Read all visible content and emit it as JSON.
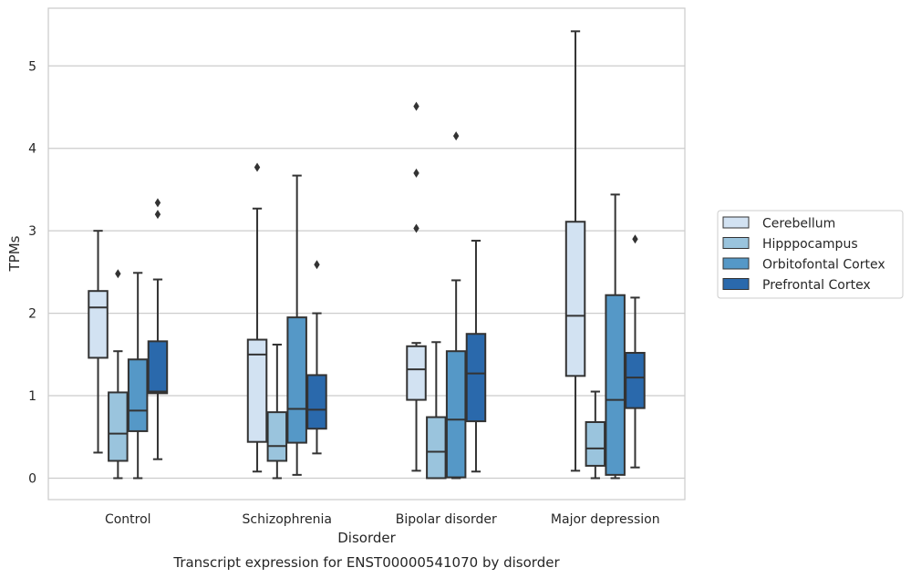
{
  "chart_data": {
    "type": "boxplot",
    "title": "Transcript expression for ENST00000541070 by disorder",
    "xlabel": "Disorder",
    "ylabel": "TPMs",
    "ylim": [
      -0.26,
      5.7
    ],
    "yticks": [
      0,
      1,
      2,
      3,
      4,
      5
    ],
    "grid": true,
    "legend_position": "right",
    "categories": [
      "Control",
      "Schizophrenia",
      "Bipolar disorder",
      "Major depression"
    ],
    "series": [
      {
        "name": "Cerebellum",
        "color": "#d2e2f2",
        "boxes": [
          {
            "whislo": 0.31,
            "q1": 1.46,
            "med": 2.07,
            "q3": 2.27,
            "whishi": 3.0,
            "fliers": []
          },
          {
            "whislo": 0.08,
            "q1": 0.44,
            "med": 1.5,
            "q3": 1.68,
            "whishi": 3.27,
            "fliers": [
              3.77
            ]
          },
          {
            "whislo": 0.09,
            "q1": 0.95,
            "med": 1.32,
            "q3": 1.6,
            "whishi": 1.64,
            "fliers": [
              3.03,
              3.7,
              4.51
            ]
          },
          {
            "whislo": 0.09,
            "q1": 1.24,
            "med": 1.97,
            "q3": 3.11,
            "whishi": 5.42,
            "fliers": []
          }
        ]
      },
      {
        "name": "Hipppocampus",
        "color": "#9ac4dd",
        "boxes": [
          {
            "whislo": 0.0,
            "q1": 0.21,
            "med": 0.54,
            "q3": 1.04,
            "whishi": 1.54,
            "fliers": [
              2.48
            ]
          },
          {
            "whislo": 0.0,
            "q1": 0.21,
            "med": 0.39,
            "q3": 0.8,
            "whishi": 1.62,
            "fliers": []
          },
          {
            "whislo": 0.0,
            "q1": 0.0,
            "med": 0.32,
            "q3": 0.74,
            "whishi": 1.65,
            "fliers": []
          },
          {
            "whislo": 0.0,
            "q1": 0.15,
            "med": 0.36,
            "q3": 0.68,
            "whishi": 1.05,
            "fliers": []
          }
        ]
      },
      {
        "name": "Orbitofontal Cortex",
        "color": "#5598c7",
        "boxes": [
          {
            "whislo": 0.0,
            "q1": 0.57,
            "med": 0.82,
            "q3": 1.44,
            "whishi": 2.49,
            "fliers": []
          },
          {
            "whislo": 0.04,
            "q1": 0.43,
            "med": 0.84,
            "q3": 1.95,
            "whishi": 3.67,
            "fliers": []
          },
          {
            "whislo": 0.0,
            "q1": 0.01,
            "med": 0.71,
            "q3": 1.54,
            "whishi": 2.4,
            "fliers": [
              4.15
            ]
          },
          {
            "whislo": 0.0,
            "q1": 0.04,
            "med": 0.95,
            "q3": 2.22,
            "whishi": 3.44,
            "fliers": []
          }
        ]
      },
      {
        "name": "Prefrontal Cortex",
        "color": "#2a69ac",
        "boxes": [
          {
            "whislo": 0.23,
            "q1": 1.03,
            "med": 1.05,
            "q3": 1.66,
            "whishi": 2.41,
            "fliers": [
              3.2,
              3.34
            ]
          },
          {
            "whislo": 0.3,
            "q1": 0.6,
            "med": 0.83,
            "q3": 1.25,
            "whishi": 2.0,
            "fliers": [
              2.59
            ]
          },
          {
            "whislo": 0.08,
            "q1": 0.69,
            "med": 1.27,
            "q3": 1.75,
            "whishi": 2.88,
            "fliers": []
          },
          {
            "whislo": 0.13,
            "q1": 0.85,
            "med": 1.22,
            "q3": 1.52,
            "whishi": 2.19,
            "fliers": [
              2.9
            ]
          }
        ]
      }
    ]
  }
}
